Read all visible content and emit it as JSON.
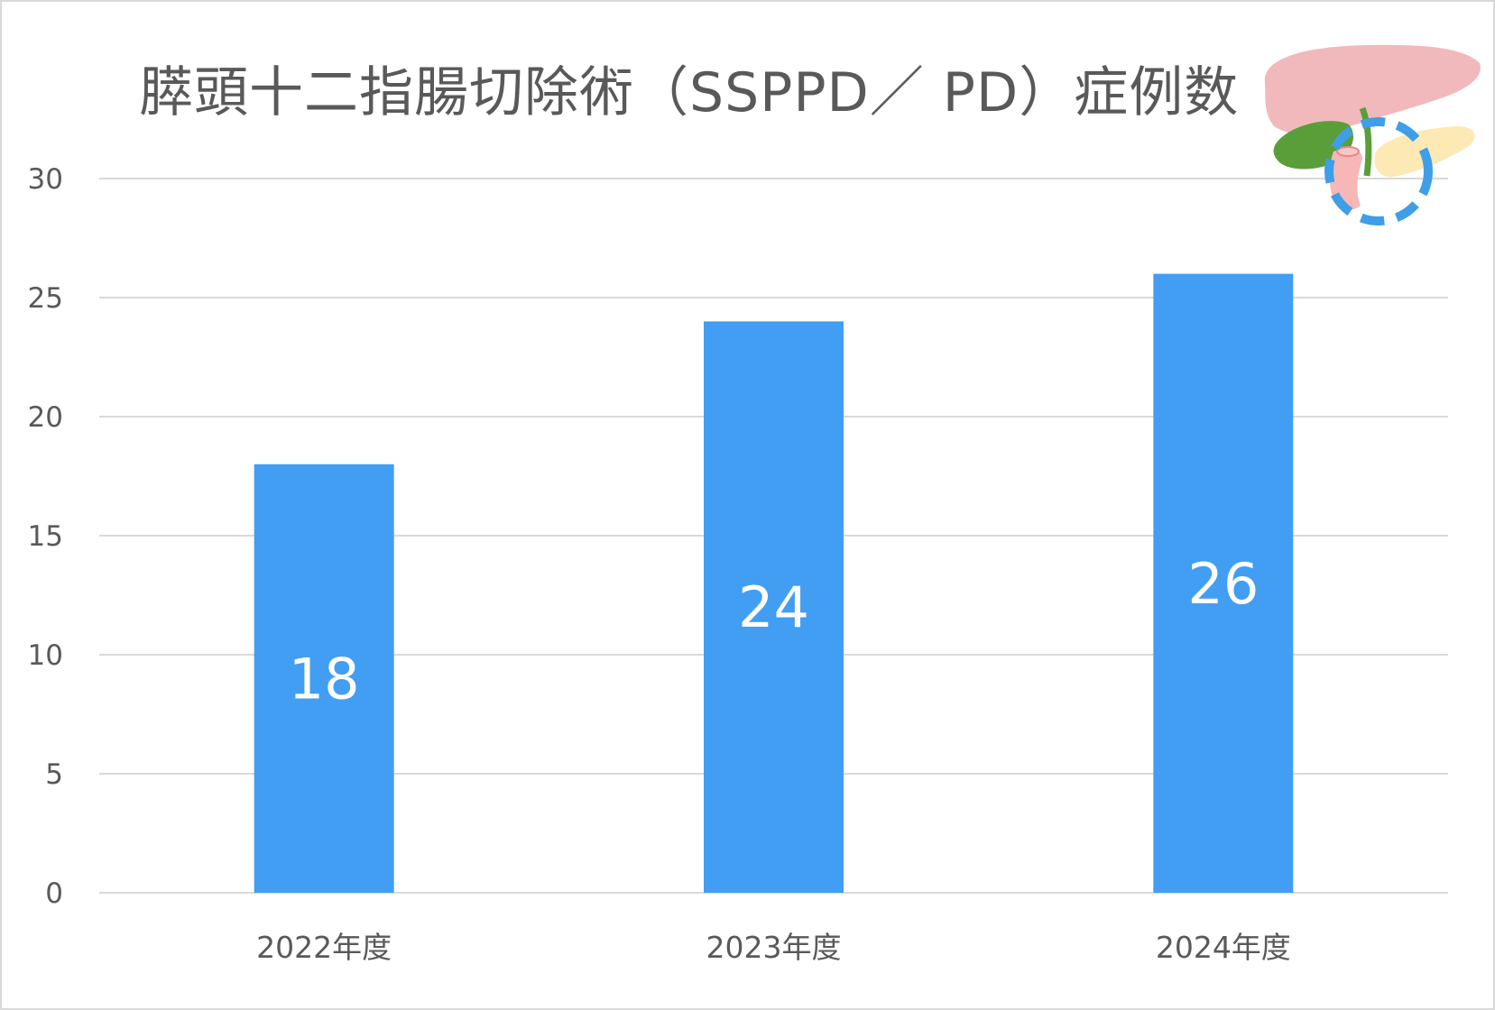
{
  "chart_data": {
    "type": "bar",
    "title": "膵頭十二指腸切除術（SSPPD／ PD）症例数",
    "categories": [
      "2022年度",
      "2023年度",
      "2024年度"
    ],
    "values": [
      18,
      24,
      26
    ],
    "data_labels": [
      "18",
      "24",
      "26"
    ],
    "ylim": [
      0,
      30
    ],
    "yticks": [
      "0",
      "5",
      "10",
      "15",
      "20",
      "25",
      "30"
    ],
    "xlabel": "",
    "ylabel": "",
    "grid": true,
    "legend": "none",
    "bar_color": "#429ef2"
  },
  "illustration": {
    "name": "pancreas-illustration",
    "highlight_color": "#3f9ee8"
  }
}
